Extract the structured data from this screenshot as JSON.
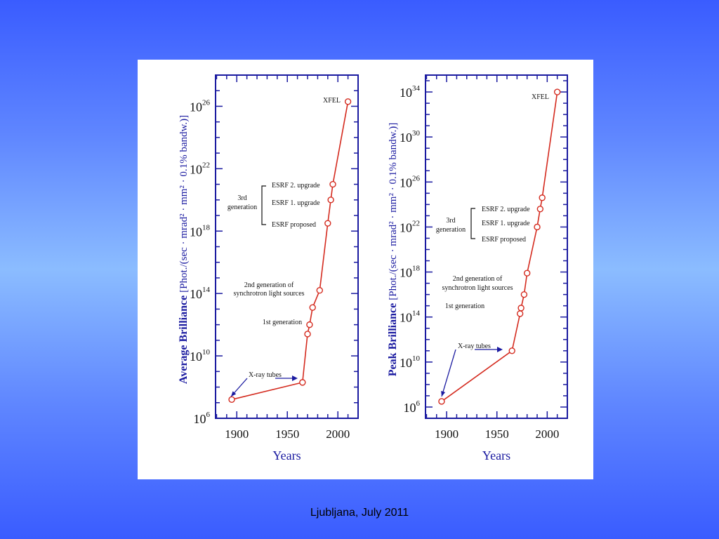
{
  "footer": "Ljubljana, July 2011",
  "colors": {
    "axis": "#1a1aa0",
    "line": "#d42a1e",
    "annotation": "#1a1aa0",
    "text": "#111111"
  },
  "chart_data": [
    {
      "type": "line",
      "ylabel_main": "Average Brilliance",
      "ylabel_units": "[Phot./(sec · mrad² · mm² · 0.1% bandw.)]",
      "xlabel": "Years",
      "x_ticks": [
        1900,
        1950,
        2000
      ],
      "xlim": [
        1879,
        2020
      ],
      "y_scale": "log10",
      "y_ticks": [
        {
          "exp": 6,
          "label": "10",
          "sup": "6"
        },
        {
          "exp": 10,
          "label": "10",
          "sup": "10"
        },
        {
          "exp": 14,
          "label": "10",
          "sup": "14"
        },
        {
          "exp": 18,
          "label": "10",
          "sup": "18"
        },
        {
          "exp": 22,
          "label": "10",
          "sup": "22"
        },
        {
          "exp": 26,
          "label": "10",
          "sup": "26"
        }
      ],
      "ylim_exp": [
        6,
        28
      ],
      "points": [
        {
          "x": 1895,
          "y_exp": 7.2
        },
        {
          "x": 1965,
          "y_exp": 8.3
        },
        {
          "x": 1970,
          "y_exp": 11.4
        },
        {
          "x": 1972,
          "y_exp": 12.0
        },
        {
          "x": 1975,
          "y_exp": 13.1
        },
        {
          "x": 1982,
          "y_exp": 14.2
        },
        {
          "x": 1990,
          "y_exp": 18.5
        },
        {
          "x": 1993,
          "y_exp": 20.0
        },
        {
          "x": 1995,
          "y_exp": 21.0
        },
        {
          "x": 2010,
          "y_exp": 26.3
        }
      ],
      "annotations": {
        "xfel": "XFEL",
        "esrf2": "ESRF 2. upgrade",
        "esrf1": "ESRF 1. upgrade",
        "esrfp": "ESRF proposed",
        "third_1": "3rd",
        "third_2": "generation",
        "second_1": "2nd generation of",
        "second_2": "synchrotron light sources",
        "first": "1st generation",
        "xray": "X-ray tubes"
      }
    },
    {
      "type": "line",
      "ylabel_main": "Peak Brilliance",
      "ylabel_units": "[Phot./(sec · mrad² · mm² · 0.1% bandw.)]",
      "xlabel": "Years",
      "x_ticks": [
        1900,
        1950,
        2000
      ],
      "xlim": [
        1879,
        2020
      ],
      "y_scale": "log10",
      "y_ticks": [
        {
          "exp": 6,
          "label": "10",
          "sup": "6"
        },
        {
          "exp": 10,
          "label": "10",
          "sup": "10"
        },
        {
          "exp": 14,
          "label": "10",
          "sup": "14"
        },
        {
          "exp": 18,
          "label": "10",
          "sup": "18"
        },
        {
          "exp": 22,
          "label": "10",
          "sup": "22"
        },
        {
          "exp": 26,
          "label": "10",
          "sup": "26"
        },
        {
          "exp": 30,
          "label": "10",
          "sup": "30"
        },
        {
          "exp": 34,
          "label": "10",
          "sup": "34"
        }
      ],
      "ylim_exp": [
        5,
        35.5
      ],
      "points": [
        {
          "x": 1895,
          "y_exp": 6.5
        },
        {
          "x": 1965,
          "y_exp": 11.0
        },
        {
          "x": 1973,
          "y_exp": 14.3
        },
        {
          "x": 1974,
          "y_exp": 14.8
        },
        {
          "x": 1977,
          "y_exp": 16.0
        },
        {
          "x": 1980,
          "y_exp": 17.9
        },
        {
          "x": 1990,
          "y_exp": 22.0
        },
        {
          "x": 1993,
          "y_exp": 23.6
        },
        {
          "x": 1995,
          "y_exp": 24.6
        },
        {
          "x": 2010,
          "y_exp": 34.0
        }
      ],
      "annotations": {
        "xfel": "XFEL",
        "esrf2": "ESRF 2. upgrade",
        "esrf1": "ESRF 1. upgrade",
        "esrfp": "ESRF proposed",
        "third_1": "3rd",
        "third_2": "generation",
        "second_1": "2nd generation of",
        "second_2": "synchrotron light sources",
        "first": "1st generation",
        "xray": "X-ray tubes"
      }
    }
  ]
}
